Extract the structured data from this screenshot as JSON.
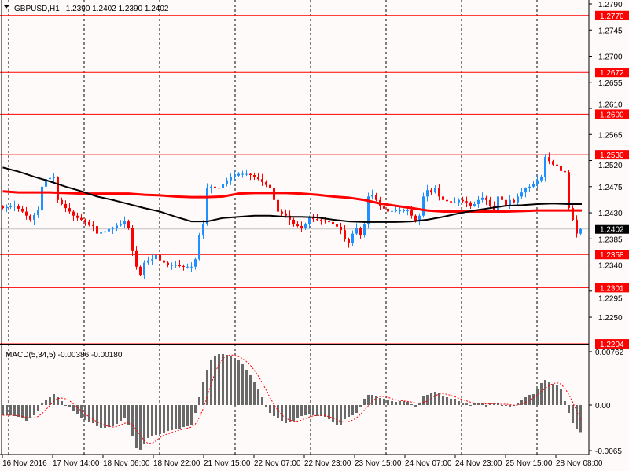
{
  "header": {
    "symbol_label": "GBPUSD,H1",
    "ohlc": "1.2390 1.2402 1.2390 1.2402"
  },
  "colors": {
    "background": "#fffafa",
    "bull": "#1e90ff",
    "bear": "#ff0000",
    "level": "#ff0000",
    "ma_fast": "#000000",
    "ma_slow": "#ff0000",
    "macd_hist": "#696969",
    "macd_signal": "#ff0000"
  },
  "chart_data": [
    {
      "type": "candlestick",
      "title": "GBPUSD,H1",
      "ylim": [
        1.2196,
        1.2796
      ],
      "price_ticks": [
        "1.2790",
        "1.2745",
        "1.2700",
        "1.2655",
        "1.2610",
        "1.2565",
        "1.2520",
        "1.2475",
        "1.2430",
        "1.2385",
        "1.2340",
        "1.2295",
        "1.2250"
      ],
      "levels": [
        "1.2770",
        "1.2672",
        "1.2600",
        "1.2530",
        "1.2358",
        "1.2301",
        "1.2204"
      ],
      "current_price": "1.2402",
      "closes": [
        1.2438,
        1.244,
        1.2441,
        1.2442,
        1.2437,
        1.2432,
        1.2425,
        1.2418,
        1.2426,
        1.2434,
        1.2475,
        1.2488,
        1.249,
        1.2491,
        1.2452,
        1.2445,
        1.2438,
        1.2432,
        1.2425,
        1.2421,
        1.2418,
        1.2414,
        1.241,
        1.2407,
        1.2394,
        1.2396,
        1.2398,
        1.2402,
        1.2404,
        1.2408,
        1.2411,
        1.2415,
        1.2404,
        1.2364,
        1.2337,
        1.2323,
        1.2344,
        1.2348,
        1.235,
        1.2357,
        1.2348,
        1.2344,
        1.234,
        1.234,
        1.234,
        1.2338,
        1.2337,
        1.2337,
        1.2337,
        1.235,
        1.2391,
        1.2411,
        1.2472,
        1.2475,
        1.2473,
        1.2472,
        1.2479,
        1.2486,
        1.2491,
        1.2494,
        1.2497,
        1.2497,
        1.2497,
        1.2495,
        1.2492,
        1.2488,
        1.2483,
        1.2478,
        1.2472,
        1.2452,
        1.2432,
        1.2429,
        1.2425,
        1.2418,
        1.2411,
        1.2407,
        1.2404,
        1.2411,
        1.2421,
        1.2419,
        1.2418,
        1.2417,
        1.2415,
        1.2414,
        1.2411,
        1.2406,
        1.24,
        1.2384,
        1.2378,
        1.2394,
        1.2404,
        1.2391,
        1.2411,
        1.2458,
        1.2461,
        1.2452,
        1.2442,
        1.2437,
        1.2432,
        1.2433,
        1.2434,
        1.2434,
        1.2434,
        1.2434,
        1.2425,
        1.2415,
        1.2425,
        1.2458,
        1.2469,
        1.2465,
        1.2472,
        1.2458,
        1.2452,
        1.245,
        1.2448,
        1.2448,
        1.2452,
        1.245,
        1.2448,
        1.2442,
        1.2445,
        1.2452,
        1.2456,
        1.2452,
        1.2442,
        1.2434,
        1.2458,
        1.2452,
        1.2442,
        1.2452,
        1.2448,
        1.2458,
        1.2465,
        1.2472,
        1.2475,
        1.2479,
        1.2486,
        1.2492,
        1.2526,
        1.2519,
        1.2513,
        1.251,
        1.2502,
        1.25,
        1.2438,
        1.2418,
        1.2394,
        1.2402
      ],
      "ma_black_every_4_bars": [
        1.2508,
        1.2501,
        1.2492,
        1.2484,
        1.2475,
        1.2467,
        1.2458,
        1.2452,
        1.2445,
        1.2438,
        1.2432,
        1.2423,
        1.2415,
        1.2415,
        1.2421,
        1.2423,
        1.2425,
        1.2425,
        1.2423,
        1.2423,
        1.2422,
        1.2418,
        1.2415,
        1.2414,
        1.2414,
        1.2414,
        1.2415,
        1.2418,
        1.2423,
        1.2429,
        1.2434,
        1.2438,
        1.2442,
        1.2443,
        1.2445,
        1.2446,
        1.2445
      ],
      "ma_red_every_4_bars": [
        1.2467,
        1.2465,
        1.2465,
        1.2465,
        1.2464,
        1.2463,
        1.2463,
        1.2463,
        1.2463,
        1.2461,
        1.246,
        1.2458,
        1.2457,
        1.2457,
        1.2458,
        1.2463,
        1.2464,
        1.2464,
        1.2464,
        1.2463,
        1.2461,
        1.2458,
        1.2456,
        1.2452,
        1.2446,
        1.2442,
        1.2438,
        1.2434,
        1.2432,
        1.2432,
        1.2432,
        1.2432,
        1.2432,
        1.2433,
        1.2434,
        1.2434,
        1.2434
      ]
    },
    {
      "type": "bar",
      "title": "MACD(5,34,5) -0.00386 -0.00180",
      "ylim": [
        -0.0065,
        0.00762
      ],
      "y_ticks": [
        "0.00762",
        "0.00",
        "-0.0065"
      ],
      "histogram": [
        -0.00146,
        -0.00146,
        -0.00146,
        -0.00157,
        -0.00168,
        -0.0019,
        -0.00224,
        -0.00179,
        -0.00146,
        -0.00078,
        0.00022,
        0.00067,
        0.00112,
        0.00157,
        0.00112,
        0.00056,
        0,
        -0.00022,
        -0.00078,
        -0.00134,
        -0.0019,
        -0.00213,
        -0.00235,
        -0.00258,
        -0.00302,
        -0.00325,
        -0.00325,
        -0.00314,
        -0.00302,
        -0.00269,
        -0.00224,
        -0.0019,
        -0.0028,
        -0.00448,
        -0.00616,
        -0.00638,
        -0.0056,
        -0.0047,
        -0.00448,
        -0.00426,
        -0.00414,
        -0.00392,
        -0.0037,
        -0.00358,
        -0.00336,
        -0.00336,
        -0.00314,
        -0.00302,
        -0.0028,
        -0.00112,
        0.00112,
        0.00336,
        0.00504,
        0.0065,
        0.00706,
        0.00728,
        0.00728,
        0.00717,
        0.00706,
        0.00672,
        0.00638,
        0.00582,
        0.00504,
        0.00426,
        0.00336,
        0.00224,
        0.00112,
        -0.00034,
        -0.00112,
        -0.00157,
        -0.0019,
        -0.00224,
        -0.00258,
        -0.00246,
        -0.00224,
        -0.0019,
        -0.00157,
        -0.00146,
        -0.00134,
        -0.00146,
        -0.00157,
        -0.00157,
        -0.00168,
        -0.00202,
        -0.00246,
        -0.0028,
        -0.0028,
        -0.00202,
        -0.00168,
        -0.00146,
        -0.00112,
        -0.00022,
        0.0009,
        0.00146,
        0.00146,
        0.00134,
        0.00101,
        0.0009,
        0.00078,
        0.00056,
        0.00045,
        0.00056,
        0.00056,
        0.00045,
        0.00011,
        -0.00022,
        0.00034,
        0.00123,
        0.00146,
        0.00168,
        0.0019,
        0.00168,
        0.00134,
        0.00112,
        0.0009,
        0.0009,
        0.00056,
        0.00034,
        0.00022,
        0,
        0.00034,
        0.00034,
        0.00034,
        -0.00034,
        0.00022,
        0.00034,
        0.00022,
        0,
        -0.00011,
        -0.00022,
        0,
        0.00034,
        0.00078,
        0.00112,
        0.00146,
        0.00157,
        0.00224,
        0.00314,
        0.00358,
        0.00336,
        0.00302,
        0.0028,
        0.00224,
        0.00056,
        -0.00112,
        -0.00258,
        -0.00336,
        -0.00386
      ]
    }
  ],
  "time_axis": [
    "16 Nov 2016",
    "17 Nov 14:00",
    "18 Nov 06:00",
    "18 Nov 22:00",
    "21 Nov 15:00",
    "22 Nov 07:00",
    "22 Nov 23:00",
    "23 Nov 15:00",
    "24 Nov 07:00",
    "24 Nov 23:00",
    "25 Nov 15:00",
    "28 Nov 08:00"
  ]
}
